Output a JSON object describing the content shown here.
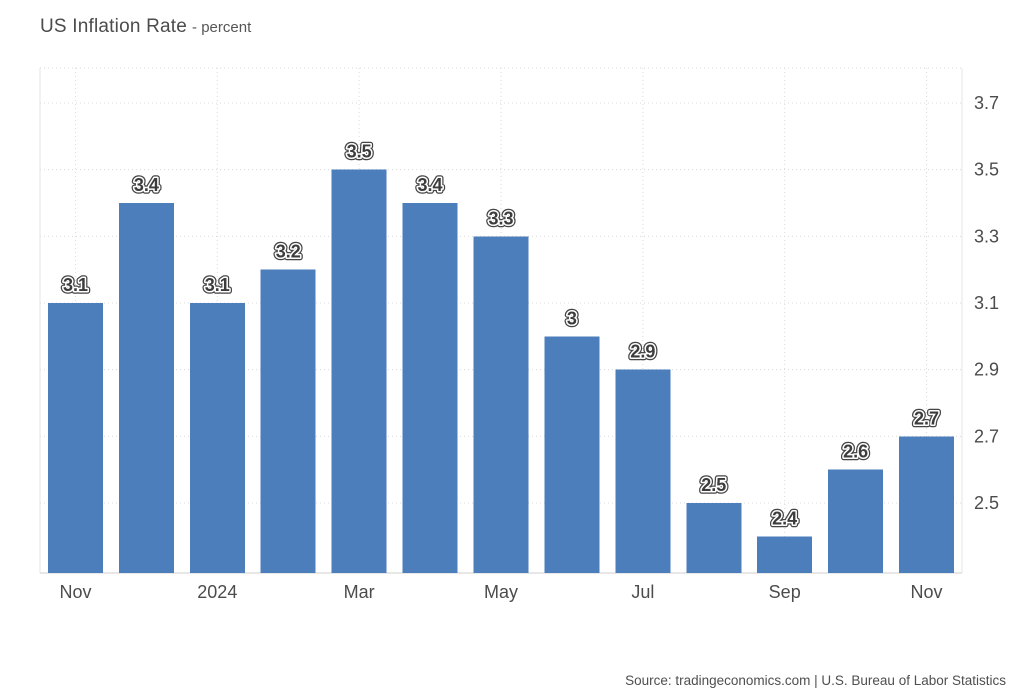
{
  "title": {
    "main": "US Inflation Rate",
    "suffix": "- percent"
  },
  "source": "Source: tradingeconomics.com | U.S. Bureau of Labor Statistics",
  "colors": {
    "background": "#ffffff",
    "bar": "#4d7ebc",
    "title_text": "#4c4c4c",
    "axis_text": "#4c4c4c",
    "value_label_fill": "#3c3c3c",
    "value_label_inner_outline": "#ffffff",
    "value_label_outer_outline": "#454545",
    "gridline": "#dadada",
    "plot_border_side": "#e4e4e4",
    "plot_border_bottom": "#cfcfcf"
  },
  "chart_data": {
    "type": "bar",
    "title": "US Inflation Rate",
    "ylabel": "percent",
    "xlabel": "",
    "legend": "none",
    "grid": "dotted horizontal at y-ticks and vertical at x-ticks",
    "y_axis_side": "right",
    "values": [
      3.1,
      3.4,
      3.1,
      3.2,
      3.5,
      3.4,
      3.3,
      3,
      2.9,
      2.5,
      2.4,
      2.6,
      2.7
    ],
    "value_labels": [
      "3.1",
      "3.4",
      "3.1",
      "3.2",
      "3.5",
      "3.4",
      "3.3",
      "3",
      "2.9",
      "2.5",
      "2.4",
      "2.6",
      "2.7"
    ],
    "x_ticks": [
      {
        "bar_index": 0,
        "label": "Nov"
      },
      {
        "bar_index": 2,
        "label": "2024"
      },
      {
        "bar_index": 4,
        "label": "Mar"
      },
      {
        "bar_index": 6,
        "label": "May"
      },
      {
        "bar_index": 8,
        "label": "Jul"
      },
      {
        "bar_index": 10,
        "label": "Sep"
      },
      {
        "bar_index": 12,
        "label": "Nov"
      }
    ],
    "y_ticks": [
      "3.7",
      "3.5",
      "3.3",
      "3.1",
      "2.9",
      "2.7",
      "2.5"
    ],
    "ylim": [
      2.29,
      3.805
    ]
  }
}
